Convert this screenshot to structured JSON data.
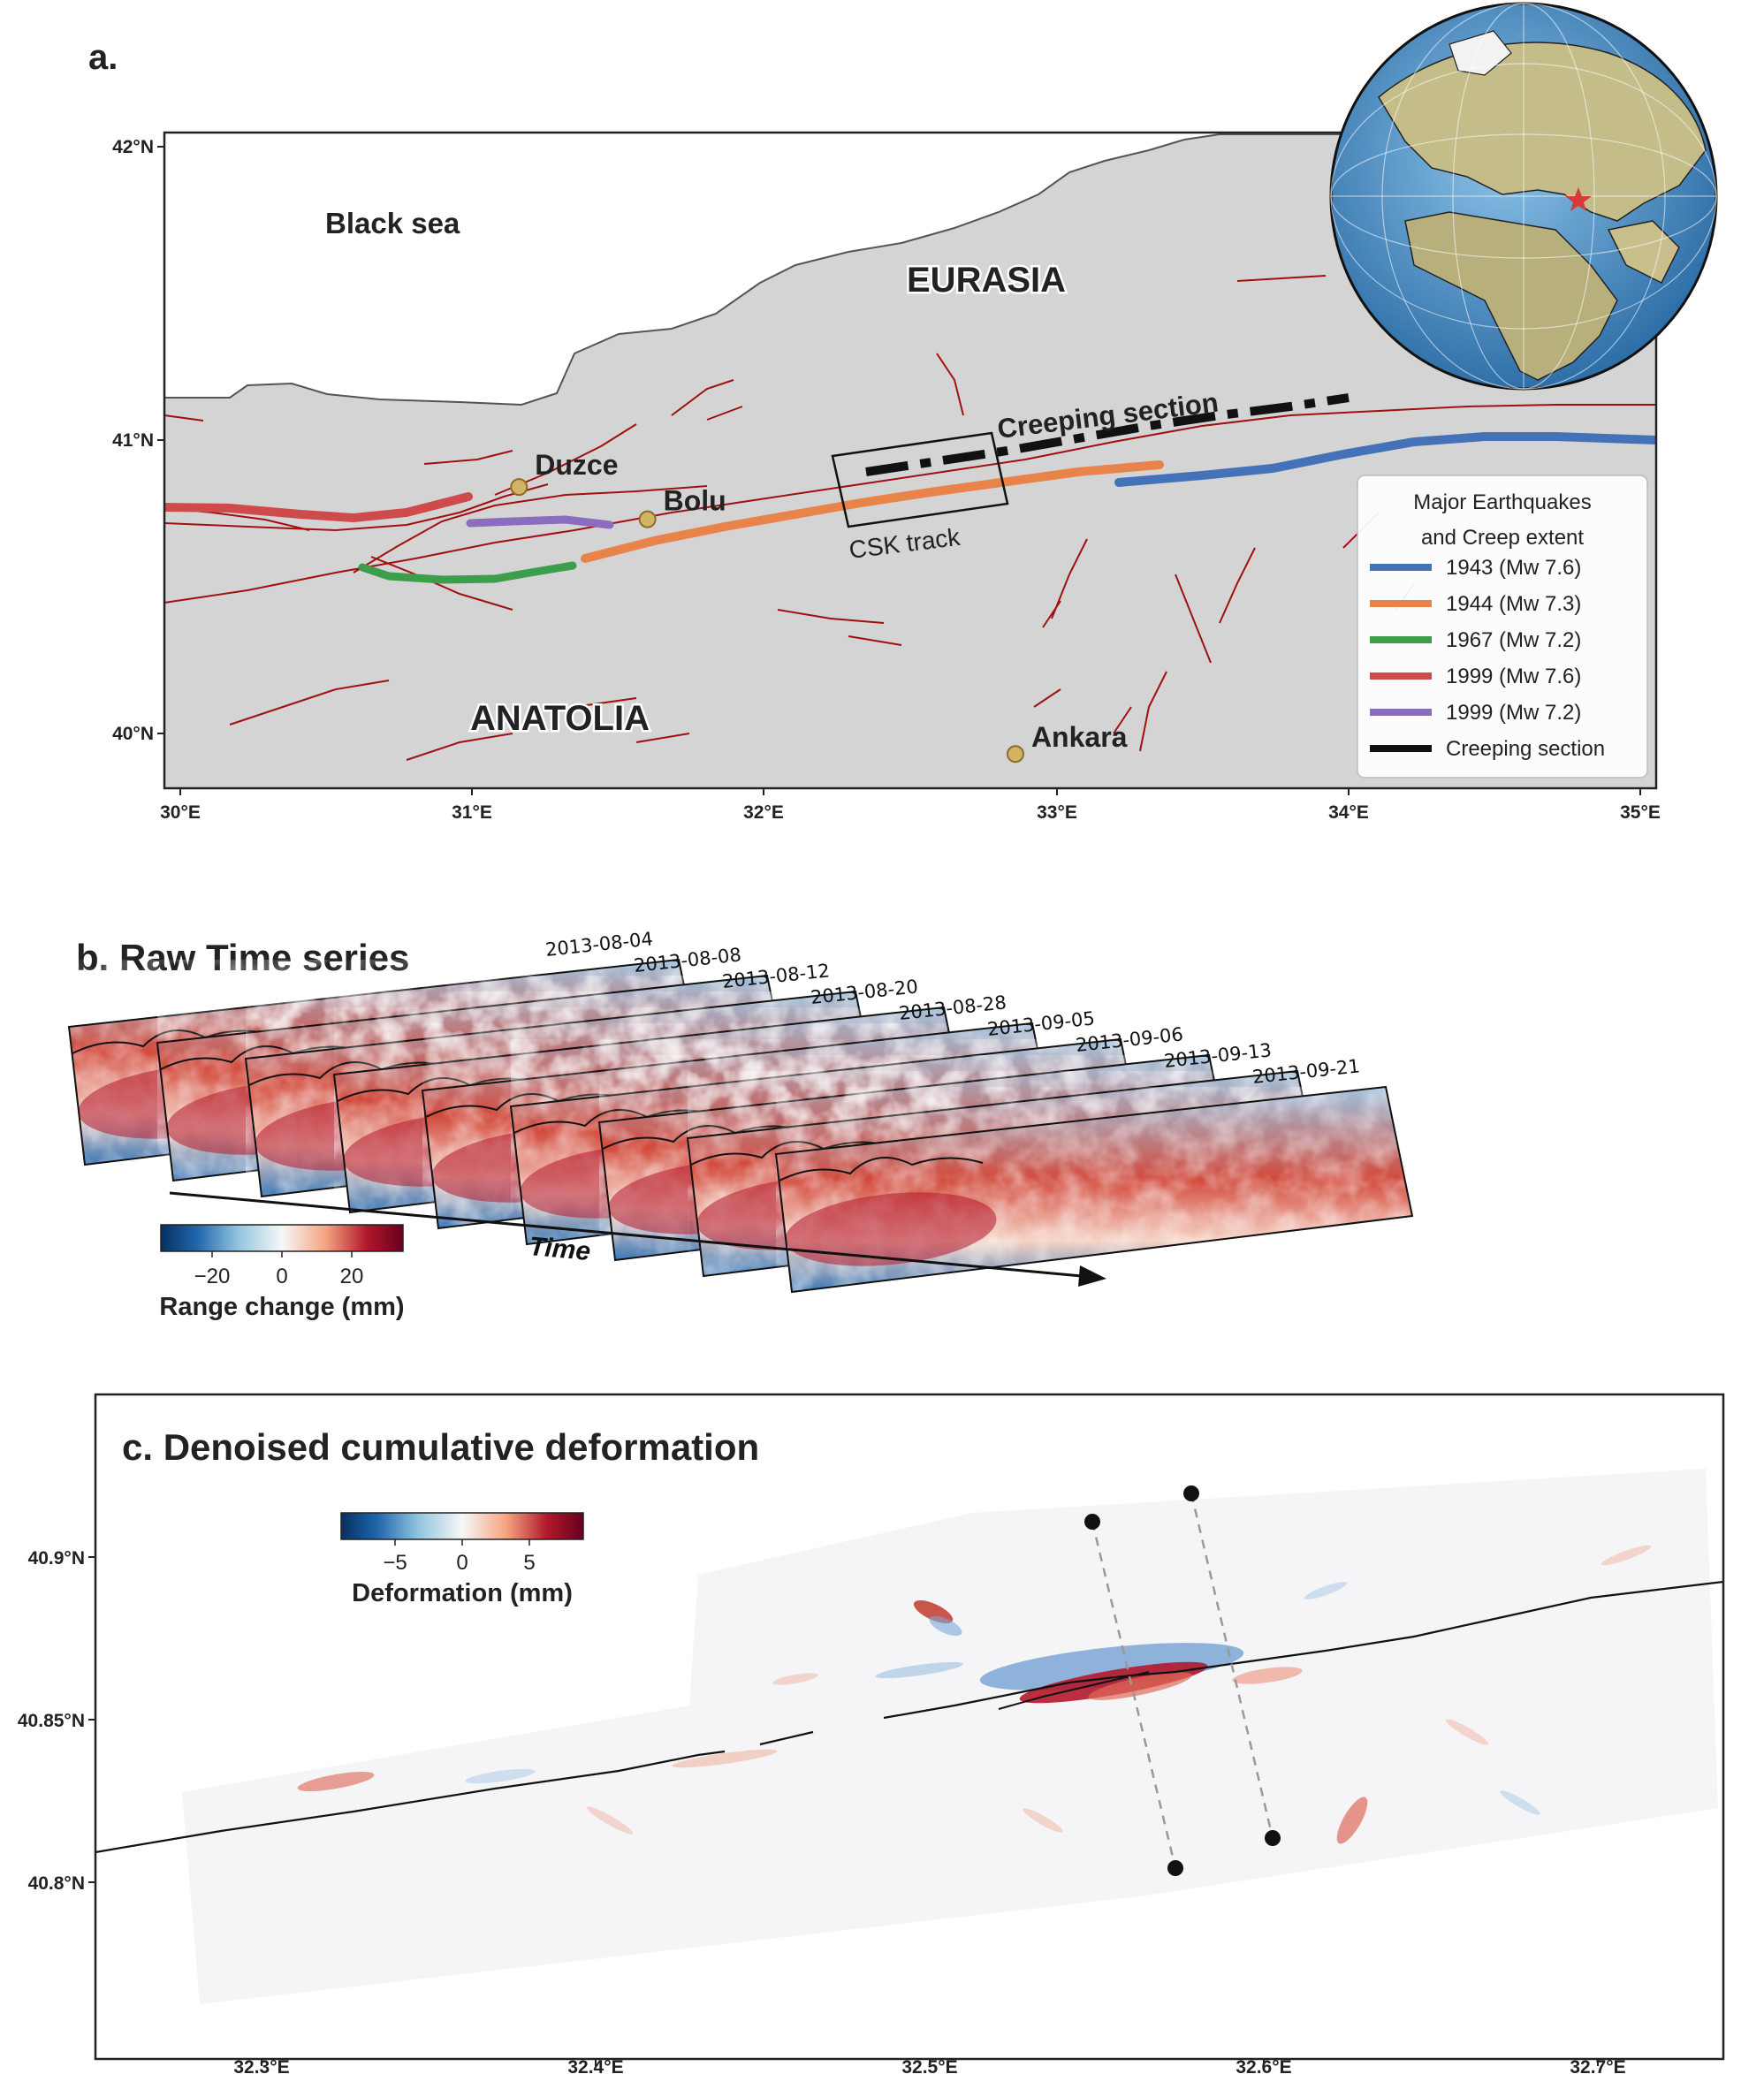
{
  "panel_a": {
    "label": "a.",
    "lat_ticks": [
      "42°N",
      "41°N",
      "40°N"
    ],
    "lon_ticks": [
      "30°E",
      "31°E",
      "32°E",
      "33°E",
      "34°E",
      "35°E"
    ],
    "sea_label": "Black sea",
    "eurasia_label": "EURASIA",
    "anatolia_label": "ANATOLIA",
    "cities": [
      {
        "name": "Duzce",
        "lon": 31.16,
        "lat": 40.84
      },
      {
        "name": "Bolu",
        "lon": 31.6,
        "lat": 40.73
      },
      {
        "name": "Ankara",
        "lon": 32.86,
        "lat": 39.93
      }
    ],
    "creeping_label": "Creeping section",
    "csk_label": "CSK track",
    "legend": {
      "title_line1": "Major Earthquakes",
      "title_line2": "and Creep extent",
      "entries": [
        {
          "label": "1943 (Mw 7.6)",
          "color": "#4472b8"
        },
        {
          "label": "1944 (Mw 7.3)",
          "color": "#e8834a"
        },
        {
          "label": "1967 (Mw 7.2)",
          "color": "#3c9e4a"
        },
        {
          "label": "1999 (Mw 7.6)",
          "color": "#cf4b4b"
        },
        {
          "label": "1999 (Mw 7.2)",
          "color": "#8a6dbf"
        },
        {
          "label": "Creeping section",
          "color": "#111111"
        }
      ]
    },
    "colors": {
      "land": "#d4d4d4",
      "fault": "#a01010"
    }
  },
  "panel_b": {
    "label": "b. Raw Time series",
    "dates": [
      "2013-08-04",
      "2013-08-08",
      "2013-08-12",
      "2013-08-20",
      "2013-08-28",
      "2013-09-05",
      "2013-09-06",
      "2013-09-13",
      "2013-09-21"
    ],
    "time_label": "Time",
    "colorbar_ticks": [
      "−20",
      "0",
      "20"
    ],
    "colorbar_label": "Range change (mm)"
  },
  "panel_c": {
    "label": "c. Denoised cumulative deformation",
    "lat_ticks": [
      "40.9°N",
      "40.85°N",
      "40.8°N"
    ],
    "lon_ticks": [
      "32.3°E",
      "32.4°E",
      "32.5°E",
      "32.6°E",
      "32.7°E"
    ],
    "colorbar_ticks": [
      "−5",
      "0",
      "5"
    ],
    "colorbar_label": "Deformation (mm)"
  }
}
